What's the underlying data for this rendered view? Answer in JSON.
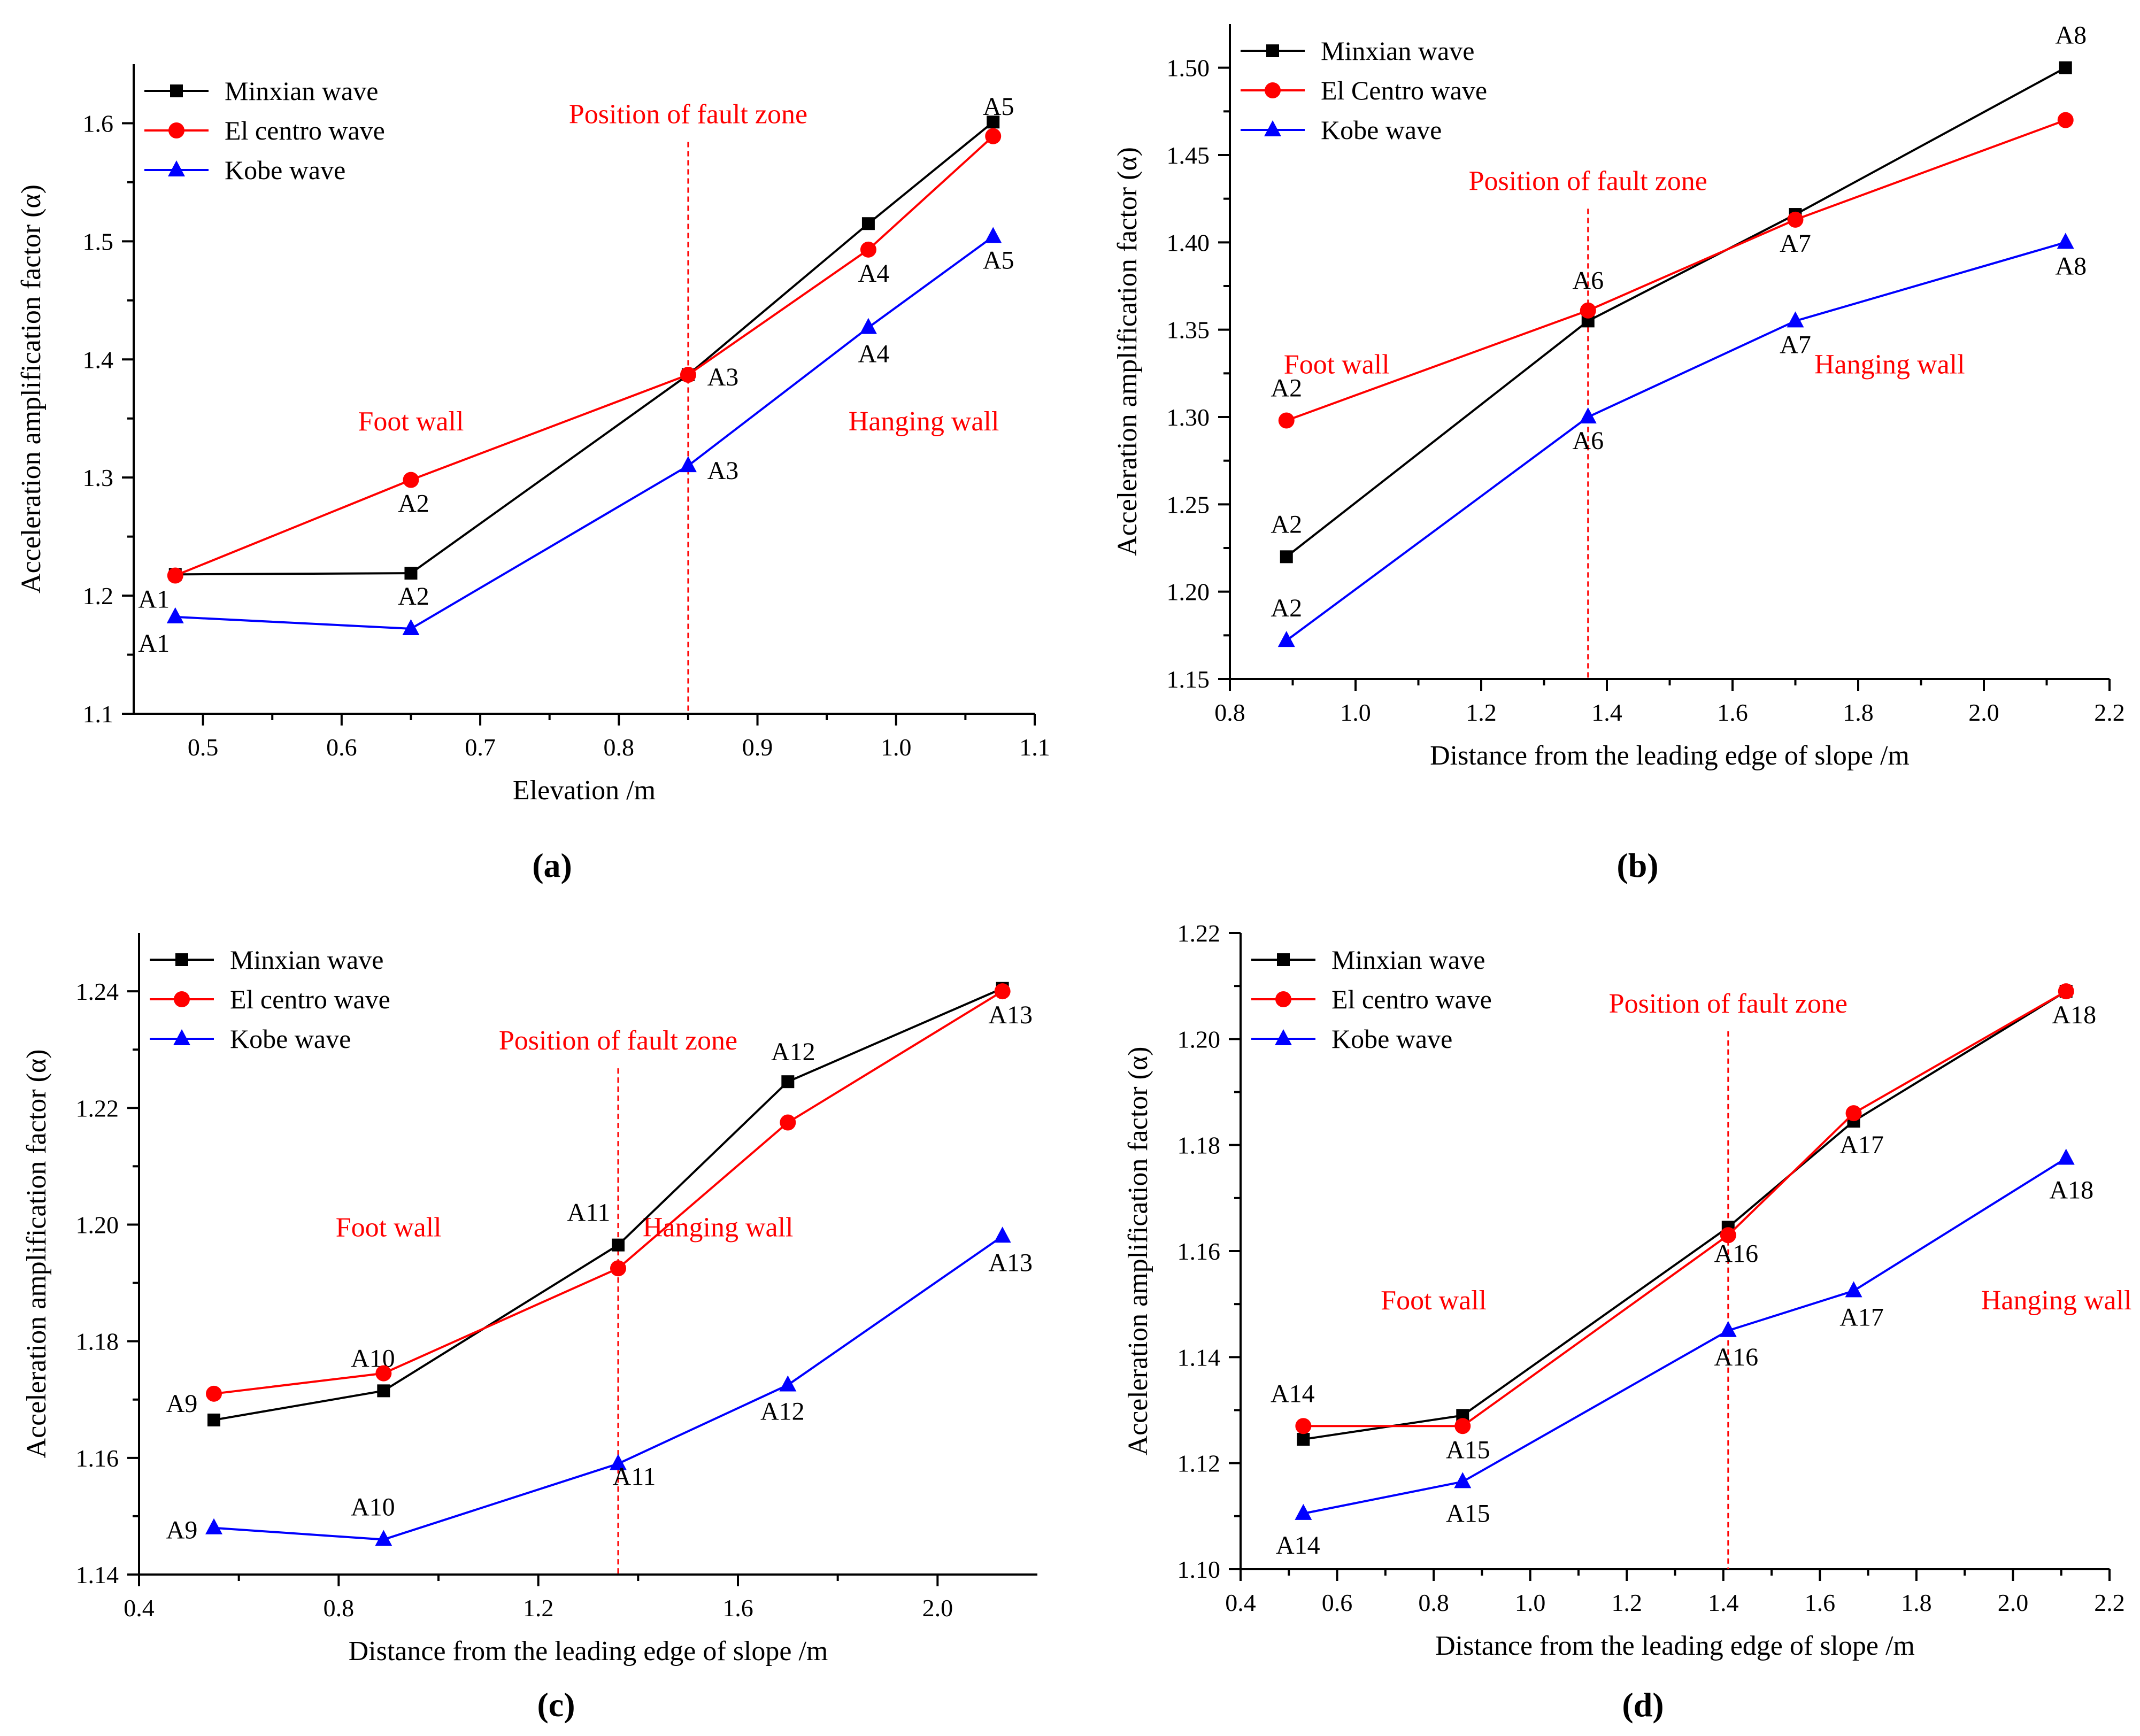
{
  "colors": {
    "Minxian": "#000000",
    "ElCentro": "#ff0000",
    "Kobe": "#0000ff",
    "annotation": "#ff0000",
    "axis": "#000000"
  },
  "panel_labels": [
    "(a)",
    "(b)",
    "(c)",
    "(d)"
  ],
  "chart_data": [
    {
      "type": "line",
      "panel": "(a)",
      "xlabel": "Elevation /m",
      "ylabel": "Acceleration amplification factor (α)",
      "xlim": [
        0.45,
        1.1
      ],
      "ylim": [
        1.1,
        1.65
      ],
      "xticks": [
        0.5,
        0.6,
        0.7,
        0.8,
        0.9,
        1.0,
        1.1
      ],
      "xtick_labels": [
        "0.5",
        "0.6",
        "0.7",
        "0.8",
        "0.9",
        "1.0",
        "1.1"
      ],
      "yticks": [
        1.1,
        1.2,
        1.3,
        1.4,
        1.5,
        1.6
      ],
      "ytick_labels": [
        "1.1",
        "1.2",
        "1.3",
        "1.4",
        "1.5",
        "1.6"
      ],
      "legend_position": "top-left",
      "fault_zone_x": 0.85,
      "annotations": [
        {
          "text": "Position of fault zone",
          "x": 0.85,
          "y": 1.6
        },
        {
          "text": "Foot wall",
          "x": 0.65,
          "y": 1.34
        },
        {
          "text": "Hanging wall",
          "x": 1.02,
          "y": 1.34
        }
      ],
      "series": [
        {
          "name": "Minxian wave",
          "marker": "square",
          "x": [
            0.48,
            0.65,
            0.85,
            0.98,
            1.07
          ],
          "y": [
            1.218,
            1.219,
            1.387,
            1.515,
            1.601
          ],
          "labels": []
        },
        {
          "name": "El centro wave",
          "marker": "circle",
          "x": [
            0.48,
            0.65,
            0.85,
            0.98,
            1.07
          ],
          "y": [
            1.217,
            1.298,
            1.387,
            1.493,
            1.589
          ],
          "labels": [
            "A1",
            "A2",
            "A3",
            "A4",
            "A5"
          ]
        },
        {
          "name": "Kobe wave",
          "marker": "triangle",
          "x": [
            0.48,
            0.65,
            0.85,
            0.98,
            1.07
          ],
          "y": [
            1.182,
            1.172,
            1.31,
            1.427,
            1.504
          ],
          "labels": [
            "A1",
            "A2",
            "A3",
            "A4",
            "A5"
          ]
        }
      ]
    },
    {
      "type": "line",
      "panel": "(b)",
      "xlabel": "Distance from the leading edge of slope /m",
      "ylabel": "Acceleration amplification factor (α)",
      "xlim": [
        0.8,
        2.2
      ],
      "ylim": [
        1.15,
        1.525
      ],
      "xticks": [
        0.8,
        1.0,
        1.2,
        1.4,
        1.6,
        1.8,
        2.0,
        2.2
      ],
      "xtick_labels": [
        "0.8",
        "1.0",
        "1.2",
        "1.4",
        "1.6",
        "1.8",
        "2.0",
        "2.2"
      ],
      "yticks": [
        1.15,
        1.2,
        1.25,
        1.3,
        1.35,
        1.4,
        1.45,
        1.5
      ],
      "ytick_labels": [
        "1.15",
        "1.20",
        "1.25",
        "1.30",
        "1.35",
        "1.40",
        "1.45",
        "1.50"
      ],
      "legend_position": "top-left",
      "fault_zone_x": 1.37,
      "annotations": [
        {
          "text": "Position of fault zone",
          "x": 1.37,
          "y": 1.43
        },
        {
          "text": "Foot wall",
          "x": 0.97,
          "y": 1.325
        },
        {
          "text": "Hanging wall",
          "x": 1.85,
          "y": 1.325
        }
      ],
      "series": [
        {
          "name": "Minxian wave",
          "marker": "square",
          "x": [
            0.89,
            1.37,
            1.7,
            2.13
          ],
          "y": [
            1.22,
            1.355,
            1.416,
            1.5
          ],
          "labels": [
            "A2",
            "",
            "",
            "A8"
          ]
        },
        {
          "name": "El Centro wave",
          "marker": "circle",
          "x": [
            0.89,
            1.37,
            1.7,
            2.13
          ],
          "y": [
            1.298,
            1.361,
            1.413,
            1.47
          ],
          "labels": [
            "A2",
            "A6",
            "A7",
            ""
          ]
        },
        {
          "name": "Kobe wave",
          "marker": "triangle",
          "x": [
            0.89,
            1.37,
            1.7,
            2.13
          ],
          "y": [
            1.172,
            1.3,
            1.355,
            1.4
          ],
          "labels": [
            "A2",
            "A6",
            "A7",
            "A8"
          ]
        }
      ]
    },
    {
      "type": "line",
      "panel": "(c)",
      "xlabel": "Distance from the leading edge of slope /m",
      "ylabel": "Acceleration amplification factor (α)",
      "xlim": [
        0.4,
        2.2
      ],
      "ylim": [
        1.14,
        1.25
      ],
      "xticks": [
        0.4,
        0.8,
        1.2,
        1.6,
        2.0
      ],
      "xtick_labels": [
        "0.4",
        "0.8",
        "1.2",
        "1.6",
        "2.0"
      ],
      "yticks": [
        1.14,
        1.16,
        1.18,
        1.2,
        1.22,
        1.24
      ],
      "ytick_labels": [
        "1.14",
        "1.16",
        "1.18",
        "1.20",
        "1.22",
        "1.24"
      ],
      "legend_position": "top-left",
      "fault_zone_x": 1.36,
      "annotations": [
        {
          "text": "Position of fault zone",
          "x": 1.36,
          "y": 1.23
        },
        {
          "text": "Foot wall",
          "x": 0.9,
          "y": 1.198
        },
        {
          "text": "Hanging wall",
          "x": 1.56,
          "y": 1.198
        }
      ],
      "series": [
        {
          "name": "Minxian wave",
          "marker": "square",
          "x": [
            0.55,
            0.89,
            1.36,
            1.7,
            2.13
          ],
          "y": [
            1.1665,
            1.1715,
            1.1965,
            1.2245,
            1.2405
          ],
          "labels": [
            "A9",
            "A10",
            "A11",
            "A12",
            ""
          ]
        },
        {
          "name": "El centro wave",
          "marker": "circle",
          "x": [
            0.55,
            0.89,
            1.36,
            1.7,
            2.13
          ],
          "y": [
            1.171,
            1.1745,
            1.1925,
            1.2175,
            1.24
          ],
          "labels": [
            "",
            "",
            "",
            "",
            "A13"
          ]
        },
        {
          "name": "Kobe wave",
          "marker": "triangle",
          "x": [
            0.55,
            0.89,
            1.36,
            1.7,
            2.13
          ],
          "y": [
            1.148,
            1.146,
            1.159,
            1.1725,
            1.198
          ],
          "labels": [
            "A9",
            "A10",
            "A11",
            "A12",
            "A13"
          ]
        }
      ]
    },
    {
      "type": "line",
      "panel": "(d)",
      "xlabel": "Distance from the leading edge of slope /m",
      "ylabel": "Acceleration amplification factor (α)",
      "xlim": [
        0.4,
        2.2
      ],
      "ylim": [
        1.1,
        1.22
      ],
      "xticks": [
        0.4,
        0.6,
        0.8,
        1.0,
        1.2,
        1.4,
        1.6,
        1.8,
        2.0,
        2.2
      ],
      "xtick_labels": [
        "0.4",
        "0.6",
        "0.8",
        "1.0",
        "1.2",
        "1.4",
        "1.6",
        "1.8",
        "2.0",
        "2.2"
      ],
      "yticks": [
        1.1,
        1.12,
        1.14,
        1.16,
        1.18,
        1.2,
        1.22
      ],
      "ytick_labels": [
        "1.10",
        "1.12",
        "1.14",
        "1.16",
        "1.18",
        "1.20",
        "1.22"
      ],
      "legend_position": "top-left",
      "fault_zone_x": 1.41,
      "annotations": [
        {
          "text": "Position of fault zone",
          "x": 1.41,
          "y": 1.205
        },
        {
          "text": "Foot wall",
          "x": 0.8,
          "y": 1.149
        },
        {
          "text": "Hanging wall",
          "x": 2.09,
          "y": 1.149
        }
      ],
      "series": [
        {
          "name": "Minxian wave",
          "marker": "square",
          "x": [
            0.53,
            0.86,
            1.41,
            1.67,
            2.11
          ],
          "y": [
            1.1245,
            1.129,
            1.1645,
            1.1845,
            1.209
          ],
          "labels": [
            "",
            "",
            "",
            "A17",
            "A18"
          ]
        },
        {
          "name": "El centro wave",
          "marker": "circle",
          "x": [
            0.53,
            0.86,
            1.41,
            1.67,
            2.11
          ],
          "y": [
            1.127,
            1.127,
            1.163,
            1.186,
            1.209
          ],
          "labels": [
            "A14",
            "A15",
            "A16",
            "",
            ""
          ]
        },
        {
          "name": "Kobe wave",
          "marker": "triangle",
          "x": [
            0.53,
            0.86,
            1.41,
            1.67,
            2.11
          ],
          "y": [
            1.1105,
            1.1165,
            1.145,
            1.1525,
            1.1775
          ],
          "labels": [
            "A14",
            "A15",
            "A16",
            "A17",
            "A18"
          ]
        }
      ]
    }
  ]
}
